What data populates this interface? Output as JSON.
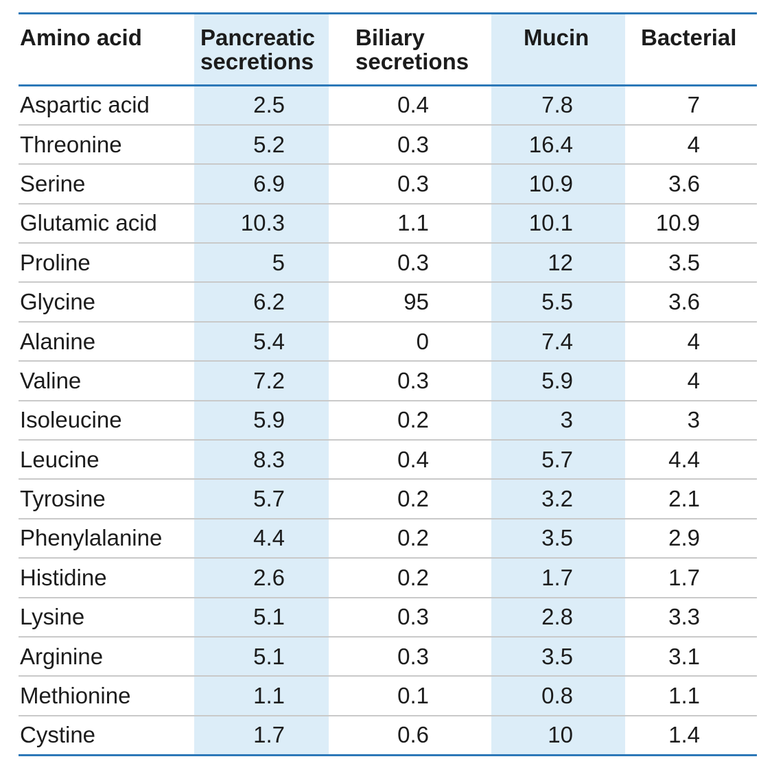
{
  "table": {
    "headers": {
      "amino_acid": "Amino acid",
      "pancreatic": "Pancreatic\nsecretions",
      "biliary": "Biliary\nsecretions",
      "mucin": "Mucin",
      "bacterial": "Bacterial"
    },
    "rows": [
      {
        "amino_acid": "Aspartic acid",
        "pancreatic": "2.5",
        "biliary": "0.4",
        "mucin": "7.8",
        "bacterial": "7"
      },
      {
        "amino_acid": "Threonine",
        "pancreatic": "5.2",
        "biliary": "0.3",
        "mucin": "16.4",
        "bacterial": "4"
      },
      {
        "amino_acid": "Serine",
        "pancreatic": "6.9",
        "biliary": "0.3",
        "mucin": "10.9",
        "bacterial": "3.6"
      },
      {
        "amino_acid": "Glutamic acid",
        "pancreatic": "10.3",
        "biliary": "1.1",
        "mucin": "10.1",
        "bacterial": "10.9"
      },
      {
        "amino_acid": "Proline",
        "pancreatic": "5",
        "biliary": "0.3",
        "mucin": "12",
        "bacterial": "3.5"
      },
      {
        "amino_acid": "Glycine",
        "pancreatic": "6.2",
        "biliary": "95",
        "mucin": "5.5",
        "bacterial": "3.6"
      },
      {
        "amino_acid": "Alanine",
        "pancreatic": "5.4",
        "biliary": "0",
        "mucin": "7.4",
        "bacterial": "4"
      },
      {
        "amino_acid": "Valine",
        "pancreatic": "7.2",
        "biliary": "0.3",
        "mucin": "5.9",
        "bacterial": "4"
      },
      {
        "amino_acid": "Isoleucine",
        "pancreatic": "5.9",
        "biliary": "0.2",
        "mucin": "3",
        "bacterial": "3"
      },
      {
        "amino_acid": "Leucine",
        "pancreatic": "8.3",
        "biliary": "0.4",
        "mucin": "5.7",
        "bacterial": "4.4"
      },
      {
        "amino_acid": "Tyrosine",
        "pancreatic": "5.7",
        "biliary": "0.2",
        "mucin": "3.2",
        "bacterial": "2.1"
      },
      {
        "amino_acid": "Phenylalanine",
        "pancreatic": "4.4",
        "biliary": "0.2",
        "mucin": "3.5",
        "bacterial": "2.9"
      },
      {
        "amino_acid": "Histidine",
        "pancreatic": "2.6",
        "biliary": "0.2",
        "mucin": "1.7",
        "bacterial": "1.7"
      },
      {
        "amino_acid": "Lysine",
        "pancreatic": "5.1",
        "biliary": "0.3",
        "mucin": "2.8",
        "bacterial": "3.3"
      },
      {
        "amino_acid": "Arginine",
        "pancreatic": "5.1",
        "biliary": "0.3",
        "mucin": "3.5",
        "bacterial": "3.1"
      },
      {
        "amino_acid": "Methionine",
        "pancreatic": "1.1",
        "biliary": "0.1",
        "mucin": "0.8",
        "bacterial": "1.1"
      },
      {
        "amino_acid": "Cystine",
        "pancreatic": "1.7",
        "biliary": "0.6",
        "mucin": "10",
        "bacterial": "1.4"
      }
    ]
  },
  "colors": {
    "rule_blue": "#2c78b8",
    "column_shade": "#dcedf8",
    "row_divider": "#c9c9c9"
  }
}
